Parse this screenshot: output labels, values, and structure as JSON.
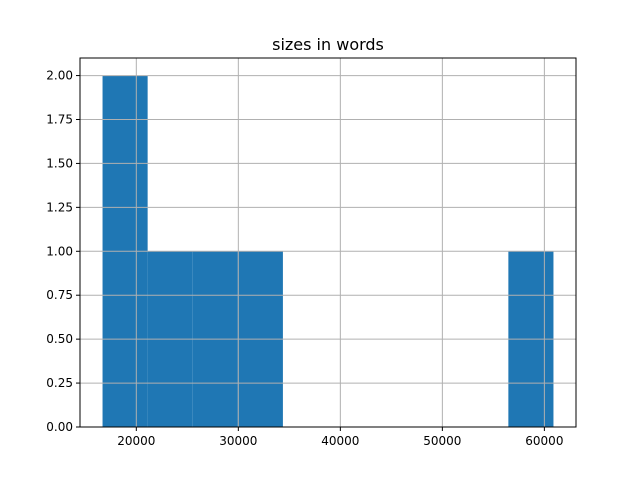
{
  "chart_data": {
    "type": "bar",
    "subtype": "histogram",
    "title": "sizes in words",
    "xlabel": "",
    "ylabel": "",
    "bin_edges": [
      16690,
      21110,
      25530,
      29950,
      34370,
      38790,
      43210,
      47630,
      52050,
      56470,
      60890
    ],
    "values": [
      2,
      1,
      1,
      1,
      0,
      0,
      0,
      0,
      0,
      1
    ],
    "xlim": [
      14480,
      63100
    ],
    "ylim": [
      0,
      2.1
    ],
    "xticks": [
      20000,
      30000,
      40000,
      50000,
      60000
    ],
    "xtick_labels": [
      "20000",
      "30000",
      "40000",
      "50000",
      "60000"
    ],
    "yticks": [
      0,
      0.25,
      0.5,
      0.75,
      1.0,
      1.25,
      1.5,
      1.75,
      2.0
    ],
    "ytick_labels": [
      "0.00",
      "0.25",
      "0.50",
      "0.75",
      "1.00",
      "1.25",
      "1.50",
      "1.75",
      "2.00"
    ],
    "grid": true,
    "legend": "none",
    "colors": {
      "bar": "#1f77b4",
      "grid": "#b0b0b0"
    }
  }
}
